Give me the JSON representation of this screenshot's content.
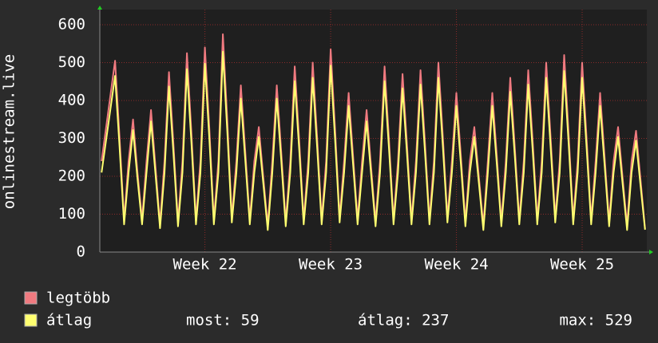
{
  "chart_data": {
    "type": "line",
    "ylabel": "onlinestream.live",
    "xlim": [
      -5.85,
      24.6
    ],
    "xticks": [
      {
        "value": 0,
        "label": "Week 22"
      },
      {
        "value": 7,
        "label": "Week 23"
      },
      {
        "value": 14,
        "label": "Week 24"
      },
      {
        "value": 21,
        "label": "Week 25"
      }
    ],
    "ylim": [
      0,
      640
    ],
    "yticks": [
      0,
      100,
      200,
      300,
      400,
      500,
      600
    ],
    "grid": true,
    "x": [
      -5.75,
      -5,
      -4.75,
      -4.5,
      -4.25,
      -4,
      -3.75,
      -3.5,
      -3.25,
      -3,
      -2.75,
      -2.5,
      -2.25,
      -2,
      -1.75,
      -1.5,
      -1.25,
      -1,
      -0.75,
      -0.5,
      -0.25,
      0,
      0.25,
      0.5,
      0.75,
      1,
      1.25,
      1.5,
      1.75,
      2,
      2.25,
      2.5,
      2.75,
      3,
      3.25,
      3.5,
      3.75,
      4,
      4.25,
      4.5,
      4.75,
      5,
      5.25,
      5.5,
      5.75,
      6,
      6.25,
      6.5,
      6.75,
      7,
      7.25,
      7.5,
      7.75,
      8,
      8.25,
      8.5,
      8.75,
      9,
      9.25,
      9.5,
      9.75,
      10,
      10.25,
      10.5,
      10.75,
      11,
      11.25,
      11.5,
      11.75,
      12,
      12.25,
      12.5,
      12.75,
      13,
      13.25,
      13.5,
      13.75,
      14,
      14.25,
      14.5,
      14.75,
      15,
      15.25,
      15.5,
      15.75,
      16,
      16.25,
      16.5,
      16.75,
      17,
      17.25,
      17.5,
      17.75,
      18,
      18.25,
      18.5,
      18.75,
      19,
      19.25,
      19.5,
      19.75,
      20,
      20.25,
      20.5,
      20.75,
      21,
      21.25,
      21.5,
      21.75,
      22,
      22.25,
      22.5,
      22.75,
      23,
      23.25,
      23.5,
      23.75,
      24,
      24.25,
      24.5
    ],
    "series": [
      {
        "name": "legtöbb",
        "color": "#f07a80",
        "values": [
          240,
          505,
          303,
          85,
          240,
          350,
          210,
          85,
          240,
          375,
          225,
          75,
          240,
          475,
          285,
          80,
          240,
          525,
          315,
          85,
          240,
          540,
          324,
          85,
          240,
          575,
          345,
          90,
          240,
          440,
          264,
          85,
          240,
          330,
          198,
          70,
          240,
          440,
          264,
          80,
          240,
          490,
          294,
          85,
          240,
          500,
          300,
          85,
          240,
          535,
          321,
          90,
          240,
          420,
          252,
          85,
          240,
          375,
          225,
          80,
          240,
          490,
          294,
          85,
          240,
          470,
          282,
          85,
          240,
          480,
          288,
          85,
          240,
          500,
          300,
          90,
          240,
          420,
          252,
          80,
          240,
          330,
          198,
          70,
          240,
          420,
          252,
          80,
          240,
          460,
          276,
          85,
          240,
          480,
          288,
          85,
          240,
          500,
          300,
          90,
          240,
          520,
          312,
          85,
          240,
          500,
          300,
          85,
          240,
          420,
          252,
          80,
          240,
          330,
          198,
          70,
          240,
          320,
          192,
          62
        ]
      },
      {
        "name": "átlag",
        "color": "#ffff70",
        "values": [
          210,
          465,
          278,
          73,
          210,
          322,
          193,
          73,
          210,
          345,
          206,
          63,
          210,
          437,
          261,
          68,
          210,
          483,
          289,
          73,
          210,
          497,
          297,
          73,
          210,
          529,
          316,
          78,
          210,
          405,
          242,
          73,
          210,
          304,
          182,
          58,
          210,
          405,
          242,
          68,
          210,
          451,
          270,
          73,
          210,
          460,
          275,
          73,
          210,
          492,
          294,
          78,
          210,
          386,
          231,
          73,
          210,
          345,
          206,
          68,
          210,
          451,
          270,
          73,
          210,
          432,
          259,
          73,
          210,
          442,
          264,
          73,
          210,
          460,
          275,
          78,
          210,
          386,
          231,
          68,
          210,
          304,
          182,
          58,
          210,
          386,
          231,
          68,
          210,
          423,
          253,
          73,
          210,
          442,
          264,
          73,
          210,
          460,
          275,
          78,
          210,
          478,
          286,
          73,
          210,
          460,
          275,
          73,
          210,
          386,
          231,
          68,
          210,
          304,
          182,
          58,
          210,
          294,
          176,
          59
        ]
      }
    ],
    "stats": [
      "most: 59",
      "átlag: 237",
      "max: 529"
    ]
  }
}
